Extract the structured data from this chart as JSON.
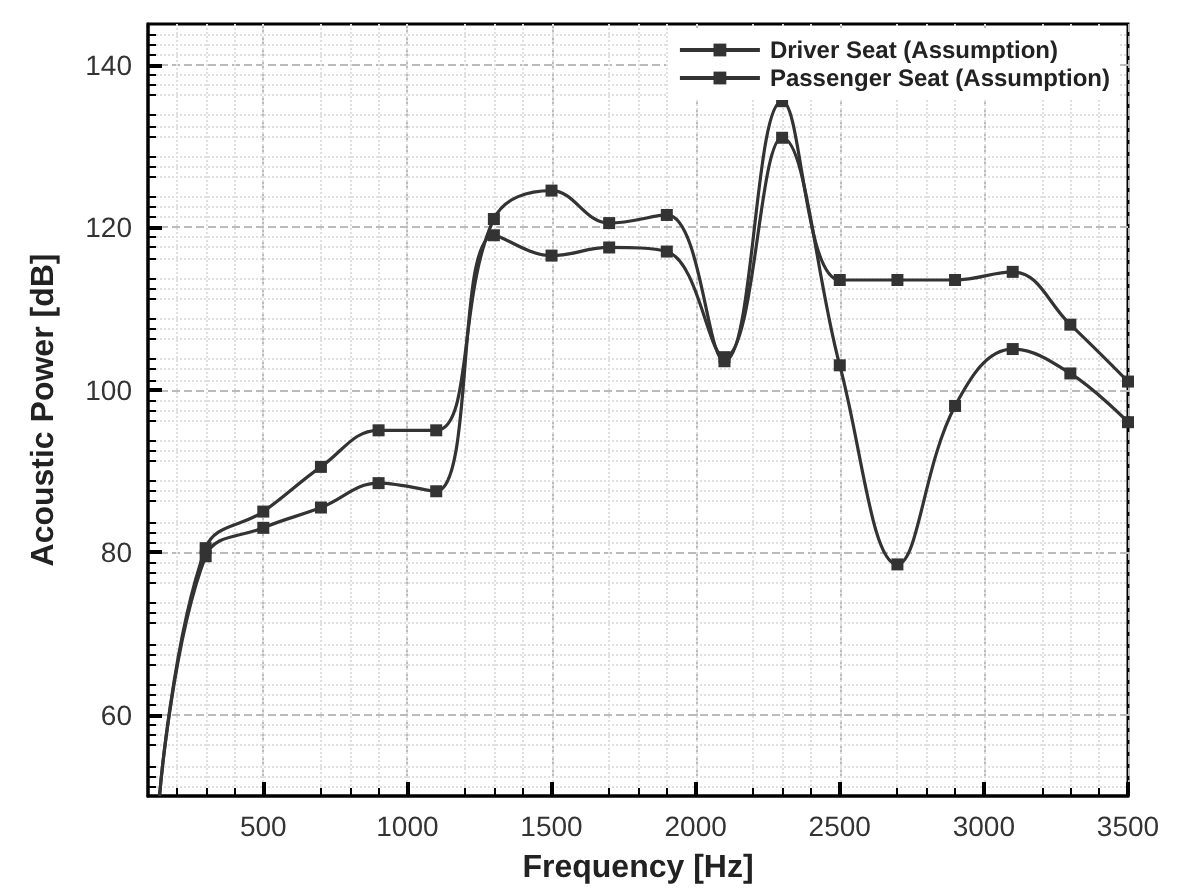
{
  "chart_data": {
    "type": "line",
    "xlabel": "Frequency [Hz]",
    "ylabel": "Acoustic Power [dB]",
    "x": [
      140,
      300,
      500,
      700,
      900,
      1100,
      1300,
      1500,
      1700,
      1900,
      2100,
      2300,
      2500,
      2700,
      2900,
      3100,
      3300,
      3500
    ],
    "series": [
      {
        "name": "Driver Seat (Assumption)",
        "color": "#333333",
        "values": [
          50,
          80.5,
          85,
          90.5,
          95,
          95,
          121,
          124.5,
          120.5,
          121.5,
          103.5,
          135.5,
          113.5,
          113.5,
          113.5,
          114.5,
          108,
          101
        ]
      },
      {
        "name": "Passenger Seat (Assumption)",
        "color": "#333333",
        "values": [
          50,
          79.5,
          83,
          85.5,
          88.5,
          87.5,
          119,
          116.5,
          117.5,
          117,
          104,
          131,
          103,
          78.5,
          98,
          105,
          102,
          96
        ]
      }
    ],
    "xlim": [
      100,
      3500
    ],
    "ylim": [
      50,
      145
    ],
    "xticks": [
      500,
      1000,
      1500,
      2000,
      2500,
      3000,
      3500
    ],
    "yticks": [
      60,
      80,
      100,
      120,
      140
    ],
    "grid": true,
    "legend": "top right",
    "marker": "square",
    "line_style": "solid"
  }
}
